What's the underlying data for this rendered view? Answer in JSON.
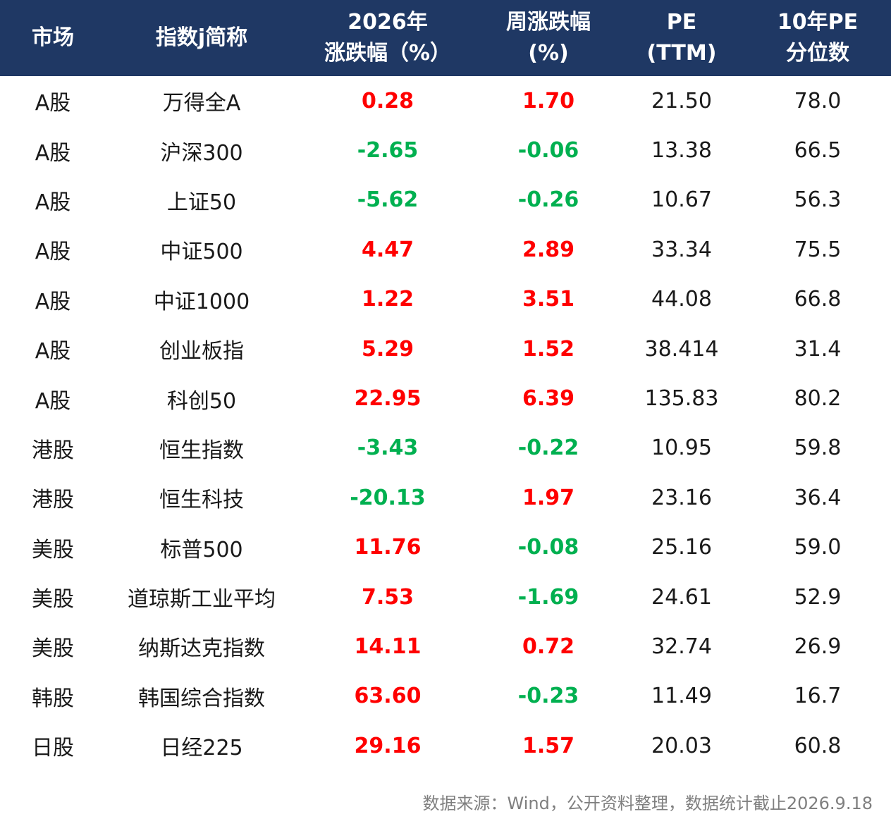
{
  "chart_data": {
    "type": "table",
    "columns": [
      "市场",
      "指数j简称",
      "2026年\n涨跌幅（%）",
      "周涨跌幅\n(%)",
      "PE\n(TTM)",
      "10年PE\n分位数"
    ],
    "rows": [
      {
        "market": "A股",
        "index": "万得全A",
        "ytd": "0.28",
        "week": "1.70",
        "pe": "21.50",
        "pct": "78.0"
      },
      {
        "market": "A股",
        "index": "沪深300",
        "ytd": "-2.65",
        "week": "-0.06",
        "pe": "13.38",
        "pct": "66.5"
      },
      {
        "market": "A股",
        "index": "上证50",
        "ytd": "-5.62",
        "week": "-0.26",
        "pe": "10.67",
        "pct": "56.3"
      },
      {
        "market": "A股",
        "index": "中证500",
        "ytd": "4.47",
        "week": "2.89",
        "pe": "33.34",
        "pct": "75.5"
      },
      {
        "market": "A股",
        "index": "中证1000",
        "ytd": "1.22",
        "week": "3.51",
        "pe": "44.08",
        "pct": "66.8"
      },
      {
        "market": "A股",
        "index": "创业板指",
        "ytd": "5.29",
        "week": "1.52",
        "pe": "38.414",
        "pct": "31.4"
      },
      {
        "market": "A股",
        "index": "科创50",
        "ytd": "22.95",
        "week": "6.39",
        "pe": "135.83",
        "pct": "80.2"
      },
      {
        "market": "港股",
        "index": "恒生指数",
        "ytd": "-3.43",
        "week": "-0.22",
        "pe": "10.95",
        "pct": "59.8"
      },
      {
        "market": "港股",
        "index": "恒生科技",
        "ytd": "-20.13",
        "week": "1.97",
        "pe": "23.16",
        "pct": "36.4"
      },
      {
        "market": "美股",
        "index": "标普500",
        "ytd": "11.76",
        "week": "-0.08",
        "pe": "25.16",
        "pct": "59.0"
      },
      {
        "market": "美股",
        "index": "道琼斯工业平均",
        "ytd": "7.53",
        "week": "-1.69",
        "pe": "24.61",
        "pct": "52.9"
      },
      {
        "market": "美股",
        "index": "纳斯达克指数",
        "ytd": "14.11",
        "week": "0.72",
        "pe": "32.74",
        "pct": "26.9"
      },
      {
        "market": "韩股",
        "index": "韩国综合指数",
        "ytd": "63.60",
        "week": "-0.23",
        "pe": "11.49",
        "pct": "16.7"
      },
      {
        "market": "日股",
        "index": "日经225",
        "ytd": "29.16",
        "week": "1.57",
        "pe": "20.03",
        "pct": "60.8"
      }
    ],
    "colors": {
      "header_bg": "#1f3864",
      "positive": "#ff0000",
      "negative": "#00b050"
    }
  },
  "footer": {
    "source": "数据来源：Wind，公开资料整理，数据统计截止2026.9.18"
  }
}
